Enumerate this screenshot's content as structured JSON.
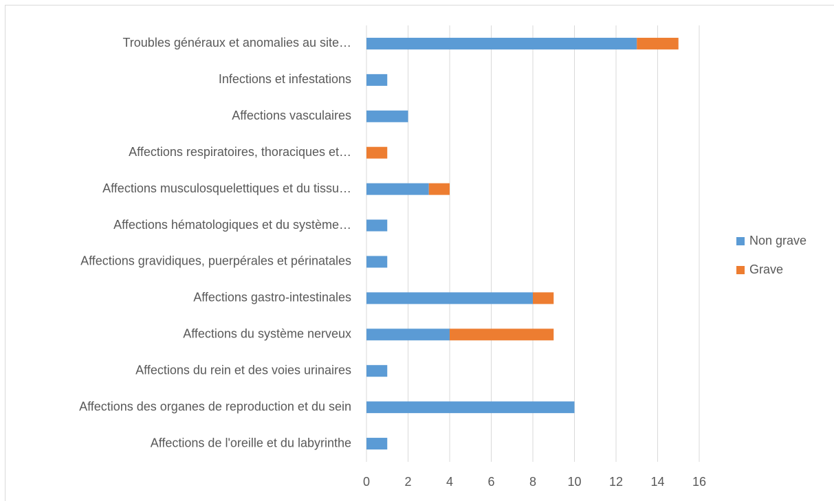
{
  "chart_data": {
    "type": "stacked-bar-horizontal",
    "categories": [
      "Troubles généraux et anomalies au site…",
      "Infections et infestations",
      "Affections vasculaires",
      "Affections respiratoires, thoraciques et…",
      "Affections musculosquelettiques et du tissu…",
      "Affections hématologiques et du système…",
      "Affections gravidiques, puerpérales et périnatales",
      "Affections gastro-intestinales",
      "Affections du système nerveux",
      "Affections du rein et des voies urinaires",
      "Affections des organes de reproduction et du sein",
      "Affections de l'oreille et du labyrinthe"
    ],
    "series": [
      {
        "name": "Non grave",
        "color": "#5b9bd5",
        "values": [
          13,
          1,
          2,
          0,
          3,
          1,
          1,
          8,
          4,
          1,
          10,
          1
        ]
      },
      {
        "name": "Grave",
        "color": "#ed7d31",
        "values": [
          2,
          0,
          0,
          1,
          1,
          0,
          0,
          1,
          5,
          0,
          0,
          0
        ]
      }
    ],
    "xlim": [
      0,
      16
    ],
    "xticks": [
      0,
      2,
      4,
      6,
      8,
      10,
      12,
      14,
      16
    ],
    "grid": true,
    "legend": "right"
  }
}
